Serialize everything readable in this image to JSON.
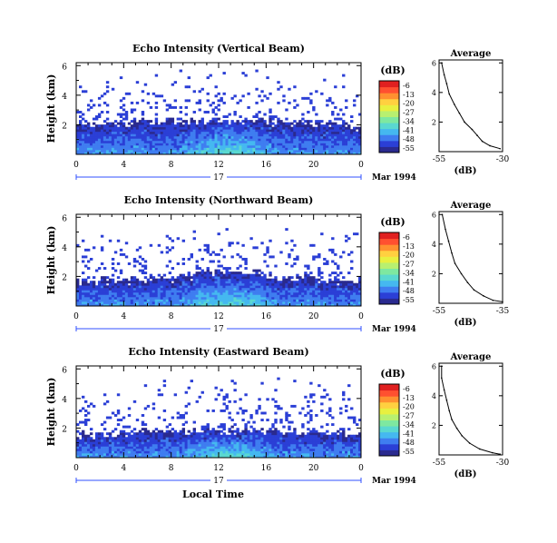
{
  "colors": {
    "colormap": [
      "#2a2a8f",
      "#2b3fd6",
      "#3f7df0",
      "#45b8f0",
      "#5ad8d0",
      "#7ee8a0",
      "#b8f070",
      "#e8f040",
      "#ffd040",
      "#ff9030",
      "#ff5030",
      "#e02020"
    ]
  },
  "figure": {
    "xlabel": "Local Time",
    "date_label": "Mar 1994",
    "colorbar_label": "(dB)",
    "colorbar_ticks": [
      "-6",
      "-13",
      "-20",
      "-27",
      "-34",
      "-41",
      "-48",
      "-55"
    ],
    "day_label": "17"
  },
  "chart_data": [
    {
      "type": "heatmap",
      "title": "Echo Intensity (Vertical Beam)",
      "ylabel": "Height (km)",
      "x": [
        0,
        4,
        8,
        12,
        16,
        20,
        0
      ],
      "xlim": [
        0,
        24
      ],
      "yticks": [
        2,
        4,
        6
      ],
      "ylim": [
        0,
        6.2
      ],
      "value_range_db": [
        -55,
        -6
      ],
      "layer_top_km": 2.0
    },
    {
      "type": "line",
      "title": "Average",
      "xlabel": "(dB)",
      "x_ticks": [
        -55,
        -30
      ],
      "xlim": [
        -55,
        -30
      ],
      "y_ticks": [
        2,
        4,
        6
      ],
      "ylim": [
        0,
        6.2
      ],
      "points": [
        [
          -54,
          6.0
        ],
        [
          -53,
          5.2
        ],
        [
          -52,
          4.6
        ],
        [
          -51,
          3.9
        ],
        [
          -49,
          3.2
        ],
        [
          -47,
          2.6
        ],
        [
          -45,
          2.0
        ],
        [
          -42,
          1.5
        ],
        [
          -40,
          1.1
        ],
        [
          -38,
          0.7
        ],
        [
          -35,
          0.4
        ],
        [
          -31,
          0.2
        ]
      ]
    },
    {
      "type": "heatmap",
      "title": "Echo Intensity (Northward Beam)",
      "ylabel": "Height (km)",
      "x": [
        0,
        4,
        8,
        12,
        16,
        20,
        0
      ],
      "xlim": [
        0,
        24
      ],
      "yticks": [
        2,
        4,
        6
      ],
      "ylim": [
        0,
        6.2
      ],
      "value_range_db": [
        -55,
        -6
      ],
      "layer_top_km": 1.7
    },
    {
      "type": "line",
      "title": "Average",
      "xlabel": "(dB)",
      "x_ticks": [
        -55,
        -35
      ],
      "xlim": [
        -55,
        -35
      ],
      "y_ticks": [
        2,
        4,
        6
      ],
      "ylim": [
        0,
        6.2
      ],
      "points": [
        [
          -54,
          6.0
        ],
        [
          -53,
          5.0
        ],
        [
          -52,
          4.2
        ],
        [
          -51,
          3.4
        ],
        [
          -50,
          2.7
        ],
        [
          -48,
          2.0
        ],
        [
          -46,
          1.4
        ],
        [
          -44,
          0.9
        ],
        [
          -41,
          0.5
        ],
        [
          -38,
          0.2
        ],
        [
          -35,
          0.1
        ]
      ]
    },
    {
      "type": "heatmap",
      "title": "Echo Intensity (Eastward Beam)",
      "ylabel": "Height (km)",
      "x": [
        0,
        4,
        8,
        12,
        16,
        20,
        0
      ],
      "xlim": [
        0,
        24
      ],
      "yticks": [
        2,
        4,
        6
      ],
      "ylim": [
        0,
        6.2
      ],
      "value_range_db": [
        -55,
        -6
      ],
      "layer_top_km": 1.6
    },
    {
      "type": "line",
      "title": "Average",
      "xlabel": "(dB)",
      "x_ticks": [
        -55,
        -30
      ],
      "xlim": [
        -55,
        -30
      ],
      "y_ticks": [
        2,
        4,
        6
      ],
      "ylim": [
        0,
        6.2
      ],
      "points": [
        [
          -54,
          6.0
        ],
        [
          -54,
          5.2
        ],
        [
          -53,
          4.4
        ],
        [
          -52,
          3.7
        ],
        [
          -51,
          3.0
        ],
        [
          -50,
          2.4
        ],
        [
          -48,
          1.8
        ],
        [
          -46,
          1.3
        ],
        [
          -43,
          0.8
        ],
        [
          -39,
          0.4
        ],
        [
          -34,
          0.15
        ],
        [
          -31,
          0.05
        ]
      ]
    }
  ]
}
